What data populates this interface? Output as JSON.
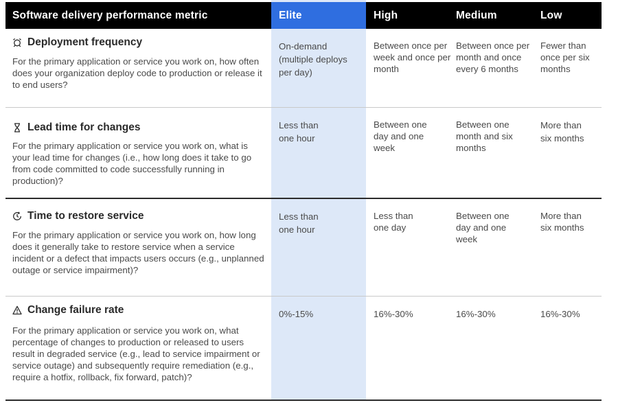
{
  "header": {
    "metric": "Software delivery performance metric",
    "elite": "Elite",
    "high": "High",
    "medium": "Medium",
    "low": "Low"
  },
  "rows": [
    {
      "icon": "deployment-icon",
      "title": "Deployment frequency",
      "description": "For the primary application or service you work on, how often does your organization deploy code to production or release it to end users?",
      "elite": "On-demand (multiple deploys per day)",
      "high": "Between once per week and once per month",
      "medium": "Between once per month and once every 6 months",
      "low": "Fewer than once per six months"
    },
    {
      "icon": "hourglass-icon",
      "title": "Lead time for changes",
      "description": "For the primary application or service you work on, what is your lead time for changes (i.e., how long does it take to go from code committed to code successfully running in production)?",
      "elite": "Less than one hour",
      "high": "Between one day and one week",
      "medium": "Between one month and six months",
      "low": "More than six months"
    },
    {
      "icon": "restore-icon",
      "title": "Time to restore service",
      "description": "For the primary application or service you work on, how long does it generally take to restore service when a service incident or a defect that impacts users occurs (e.g., unplanned outage or service impairment)?",
      "elite": "Less than one hour",
      "high": "Less than one day",
      "medium": "Between one day and one week",
      "low": "More than six months"
    },
    {
      "icon": "warning-icon",
      "title": "Change failure rate",
      "description": "For the primary application or service you work on, what percentage of changes to production or released to users result in degraded service (e.g., lead to service impairment or service outage) and subsequently require remediation (e.g., require a hotfix, rollback, fix forward, patch)?",
      "elite": "0%-15%",
      "high": "16%-30%",
      "medium": "16%-30%",
      "low": "16%-30%"
    }
  ],
  "colors": {
    "header_bg": "#000000",
    "elite_header": "#2f6ee0",
    "elite_column": "#dde8f8"
  }
}
